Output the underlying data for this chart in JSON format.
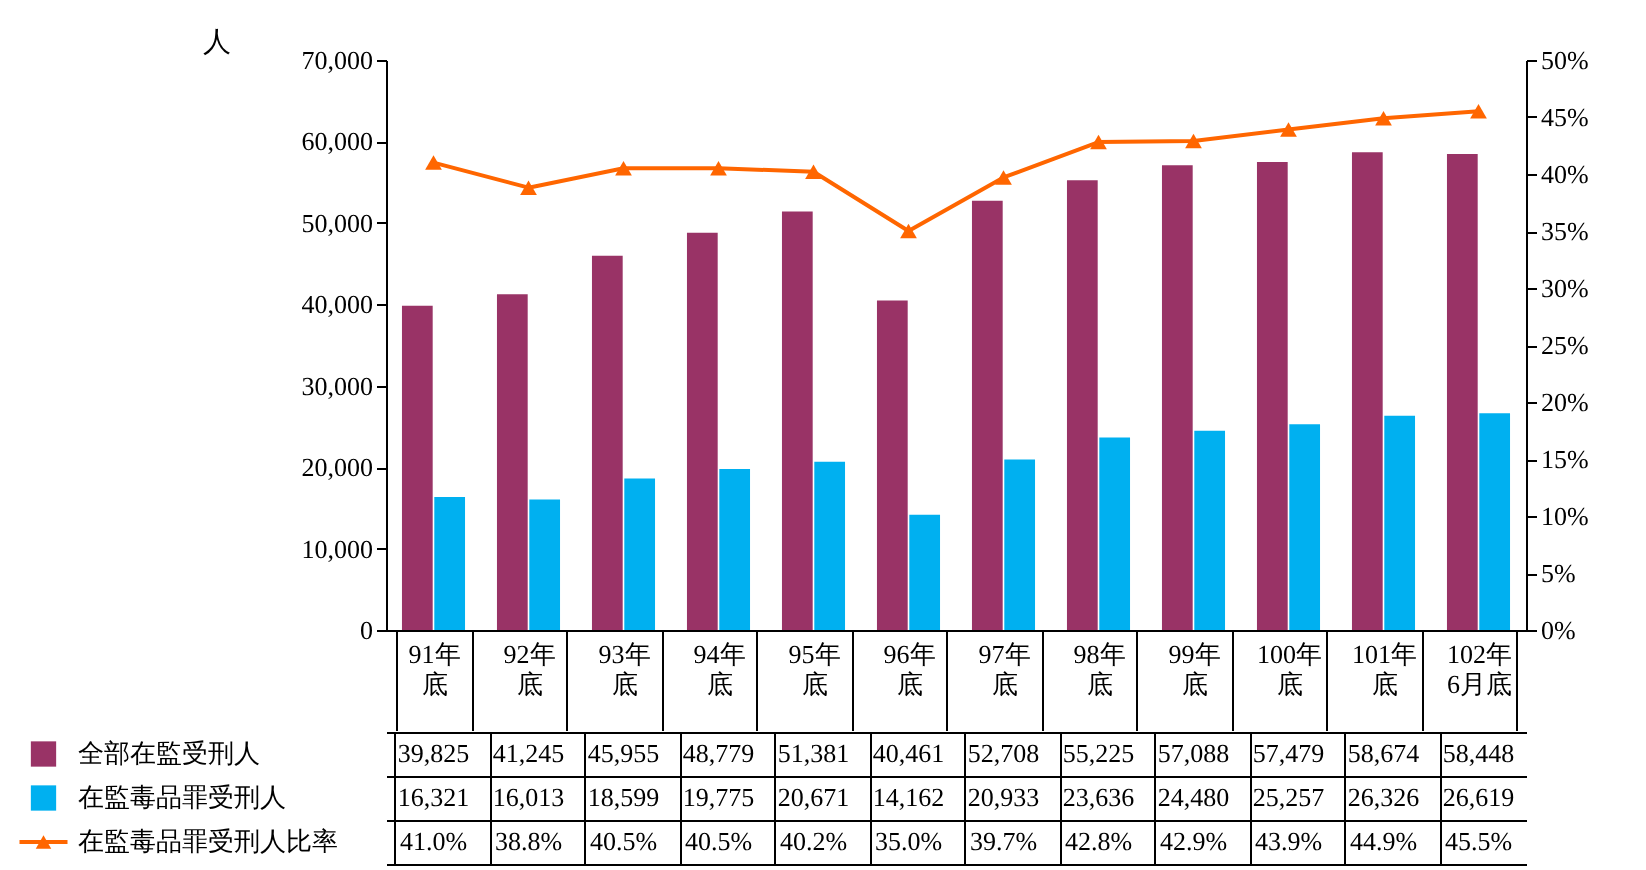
{
  "chart_data": {
    "type": "bar",
    "ylabel": "人",
    "categories": [
      "91年底",
      "92年底",
      "93年底",
      "94年底",
      "95年底",
      "96年底",
      "97年底",
      "98年底",
      "99年底",
      "100年底",
      "101年底",
      "102年6月底"
    ],
    "series": [
      {
        "name": "全部在監受刑人",
        "color": "#993366",
        "values": [
          39825,
          41245,
          45955,
          48779,
          51381,
          40461,
          52708,
          55225,
          57088,
          57479,
          58674,
          58448
        ],
        "value_labels": [
          "39,825",
          "41,245",
          "45,955",
          "48,779",
          "51,381",
          "40,461",
          "52,708",
          "55,225",
          "57,088",
          "57,479",
          "58,674",
          "58,448"
        ]
      },
      {
        "name": "在監毒品罪受刑人",
        "color": "#00b0f0",
        "values": [
          16321,
          16013,
          18599,
          19775,
          20671,
          14162,
          20933,
          23636,
          24480,
          25257,
          26326,
          26619
        ],
        "value_labels": [
          "16,321",
          "16,013",
          "18,599",
          "19,775",
          "20,671",
          "14,162",
          "20,933",
          "23,636",
          "24,480",
          "25,257",
          "26,326",
          "26,619"
        ]
      },
      {
        "name": "在監毒品罪受刑人比率",
        "type": "line",
        "axis": "y2",
        "color": "#ff6600",
        "marker": "triangle",
        "values": [
          41.0,
          38.8,
          40.5,
          40.5,
          40.2,
          35.0,
          39.7,
          42.8,
          42.9,
          43.9,
          44.9,
          45.5
        ],
        "value_labels": [
          "41.0%",
          "38.8%",
          "40.5%",
          "40.5%",
          "40.2%",
          "35.0%",
          "39.7%",
          "42.8%",
          "42.9%",
          "43.9%",
          "44.9%",
          "45.5%"
        ]
      }
    ],
    "ylim": [
      0,
      70000
    ],
    "yticks": [
      {
        "value": 0,
        "label": "0"
      },
      {
        "value": 10000,
        "label": "10,000"
      },
      {
        "value": 20000,
        "label": "20,000"
      },
      {
        "value": 30000,
        "label": "30,000"
      },
      {
        "value": 40000,
        "label": "40,000"
      },
      {
        "value": 50000,
        "label": "50,000"
      },
      {
        "value": 60000,
        "label": "60,000"
      },
      {
        "value": 70000,
        "label": "70,000"
      }
    ],
    "y2lim": [
      0,
      50
    ],
    "y2ticks": [
      {
        "value": 0,
        "label": "0%"
      },
      {
        "value": 5,
        "label": "5%"
      },
      {
        "value": 10,
        "label": "10%"
      },
      {
        "value": 15,
        "label": "15%"
      },
      {
        "value": 20,
        "label": "20%"
      },
      {
        "value": 25,
        "label": "25%"
      },
      {
        "value": 30,
        "label": "30%"
      },
      {
        "value": 35,
        "label": "35%"
      },
      {
        "value": 40,
        "label": "40%"
      },
      {
        "value": 45,
        "label": "45%"
      },
      {
        "value": 50,
        "label": "50%"
      }
    ],
    "grid": false,
    "legend": "bottom left"
  }
}
